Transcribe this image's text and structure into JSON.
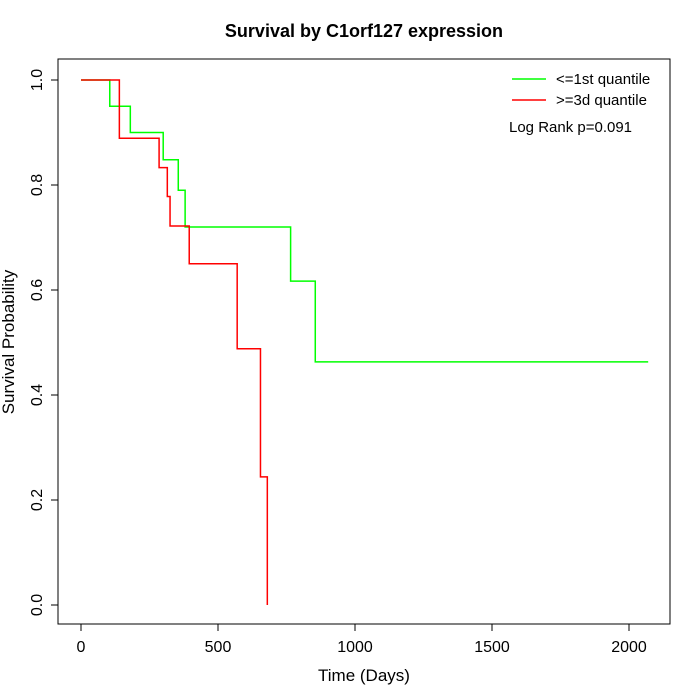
{
  "chart_data": {
    "type": "line",
    "title": "Survival by C1orf127 expression",
    "xlabel": "Time (Days)",
    "ylabel": "Survival Probability",
    "xlim": [
      0,
      2070
    ],
    "ylim": [
      0,
      1.0
    ],
    "xticks": [
      0,
      500,
      1000,
      1500,
      2000
    ],
    "xtick_labels": [
      "0",
      "500",
      "1000",
      "1500",
      "2000"
    ],
    "yticks": [
      0.0,
      0.2,
      0.4,
      0.6,
      0.8,
      1.0
    ],
    "ytick_labels": [
      "0.0",
      "0.2",
      "0.4",
      "0.6",
      "0.8",
      "1.0"
    ],
    "grid": false,
    "legend_position": "top-right",
    "annotation": "Log Rank p=0.091",
    "series": [
      {
        "name": "<=1st quantile",
        "color": "#00ff00",
        "step": true,
        "x": [
          0,
          105,
          180,
          300,
          355,
          380,
          765,
          855,
          2070
        ],
        "y": [
          1.0,
          0.95,
          0.9,
          0.848,
          0.79,
          0.72,
          0.617,
          0.463,
          0.463
        ]
      },
      {
        "name": ">=3d quantile",
        "color": "#ff0000",
        "step": true,
        "x": [
          0,
          140,
          285,
          315,
          325,
          385,
          395,
          570,
          655,
          680
        ],
        "y": [
          1.0,
          0.889,
          0.833,
          0.778,
          0.722,
          0.722,
          0.65,
          0.488,
          0.244,
          0.0
        ]
      }
    ]
  }
}
